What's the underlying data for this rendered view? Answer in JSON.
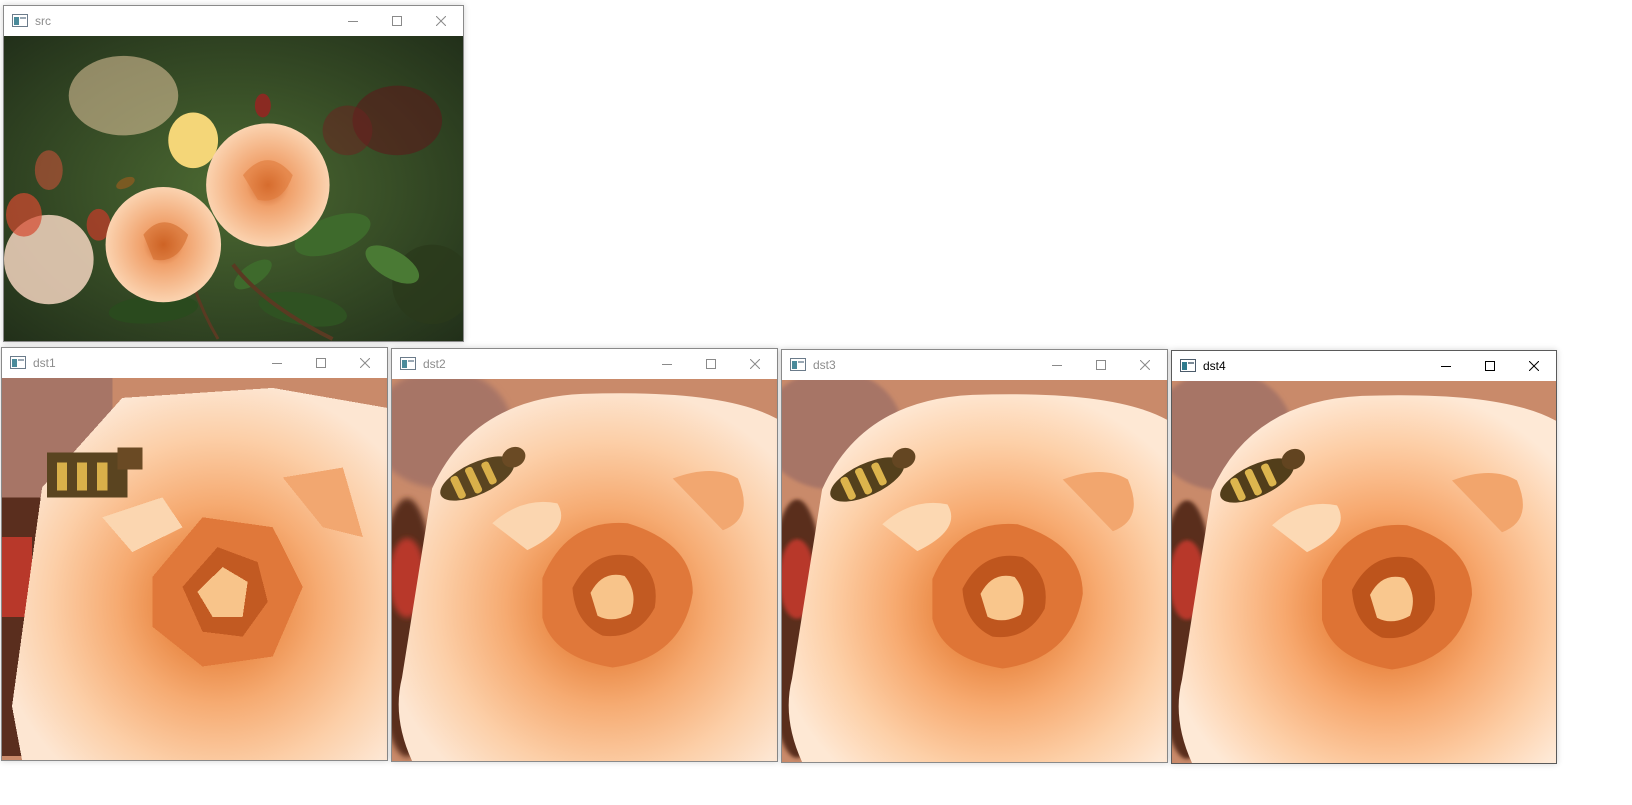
{
  "windows": [
    {
      "id": "src",
      "title": "src",
      "active": false,
      "image": "rose-garden-with-bee",
      "scaled": false,
      "interp": "original"
    },
    {
      "id": "dst1",
      "title": "dst1",
      "active": false,
      "image": "rose-closeup-with-bee",
      "scaled": true,
      "interp": "nearest"
    },
    {
      "id": "dst2",
      "title": "dst2",
      "active": false,
      "image": "rose-closeup-with-bee",
      "scaled": true,
      "interp": "bilinear"
    },
    {
      "id": "dst3",
      "title": "dst3",
      "active": false,
      "image": "rose-closeup-with-bee",
      "scaled": true,
      "interp": "bicubic"
    },
    {
      "id": "dst4",
      "title": "dst4",
      "active": true,
      "image": "rose-closeup-with-bee",
      "scaled": true,
      "interp": "lanczos"
    }
  ],
  "icons": {
    "app": "app-window-icon",
    "minimize": "minimize-icon",
    "maximize": "maximize-icon",
    "close": "close-icon"
  },
  "colors": {
    "titlebar_bg": "#ffffff",
    "title_inactive": "#8c8c8c",
    "title_active": "#000000",
    "rose_light": "#f9c9a0",
    "rose_mid": "#f2a06a",
    "rose_deep": "#d0652a",
    "foliage": "#3d5a2a"
  }
}
